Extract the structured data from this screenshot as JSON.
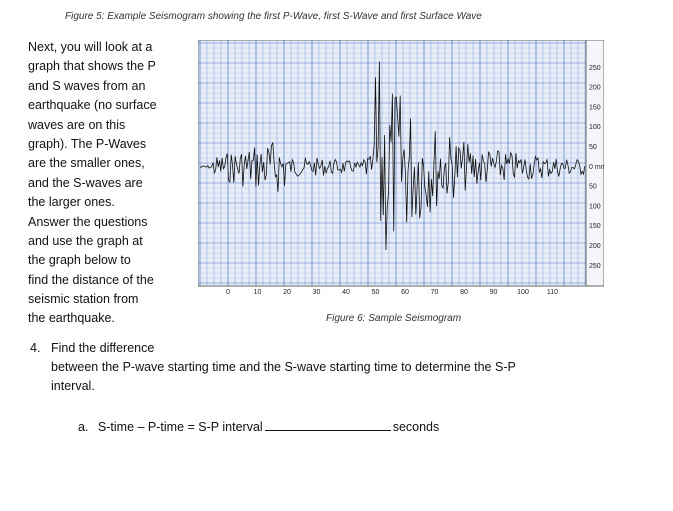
{
  "figure5_caption": "Figure 5: Example Seismogram showing the first P-Wave, first S-Wave and first Surface Wave",
  "intro_lines": [
    "Next, you will look at a",
    "graph that shows the P",
    "and S waves from an",
    "earthquake (no surface",
    "waves are on this",
    "graph). The P-Waves",
    "are the smaller ones,",
    "and the S-waves are",
    "the larger ones.",
    "Answer the questions",
    "and use the graph at",
    "the graph below to",
    "find the distance of the",
    "seismic station from",
    "the earthquake."
  ],
  "seismogram": {
    "x_labels": [
      "0",
      "10",
      "20",
      "30",
      "40",
      "50",
      "60",
      "70",
      "80",
      "90",
      "100",
      "110"
    ],
    "y_labels": [
      "250",
      "200",
      "150",
      "100",
      "50",
      "0 mm",
      "50",
      "100",
      "150",
      "200",
      "250"
    ]
  },
  "figure6_caption": "Figure 6: Sample Seismogram",
  "question": {
    "number": "4.",
    "lines": [
      "Find the difference",
      "between the P-wave starting time and the S-wave starting time to determine the S-P",
      "interval."
    ]
  },
  "item": {
    "label": "a.",
    "text": "S-time – P-time = S-P interval",
    "unit": "seconds"
  }
}
